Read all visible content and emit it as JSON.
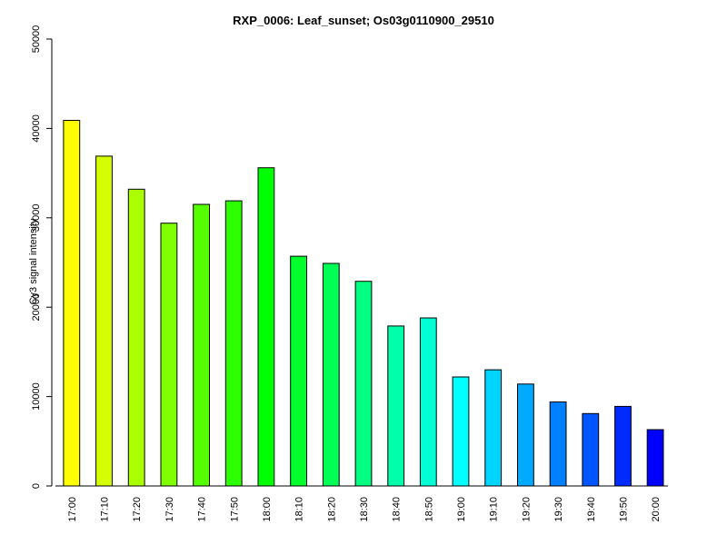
{
  "chart_data": {
    "type": "bar",
    "title": "RXP_0006: Leaf_sunset; Os03g0110900_29510",
    "xlabel": "",
    "ylabel": "Cy3 signal intensity",
    "ylim": [
      0,
      50000
    ],
    "yticks": [
      0,
      10000,
      20000,
      30000,
      40000,
      50000
    ],
    "categories": [
      "17:00",
      "17:10",
      "17:20",
      "17:30",
      "17:40",
      "17:50",
      "18:00",
      "18:10",
      "18:20",
      "18:30",
      "18:40",
      "18:50",
      "19:00",
      "19:10",
      "19:20",
      "19:30",
      "19:40",
      "19:50",
      "20:00"
    ],
    "values": [
      40900,
      36900,
      33200,
      29400,
      31500,
      31900,
      35600,
      25700,
      24900,
      22900,
      17900,
      18800,
      12200,
      13000,
      11400,
      9400,
      8100,
      8900,
      6300
    ],
    "colors": [
      "#FFFF00",
      "#D5FF00",
      "#AAFF00",
      "#80FF00",
      "#55FF00",
      "#2BFF00",
      "#00FF00",
      "#00FF2B",
      "#00FF55",
      "#00FF80",
      "#00FFAA",
      "#00FFD5",
      "#00FFFF",
      "#00D5FF",
      "#00AAFF",
      "#0080FF",
      "#0055FF",
      "#002BFF",
      "#0000FF"
    ],
    "grid": false,
    "legend": "none"
  }
}
